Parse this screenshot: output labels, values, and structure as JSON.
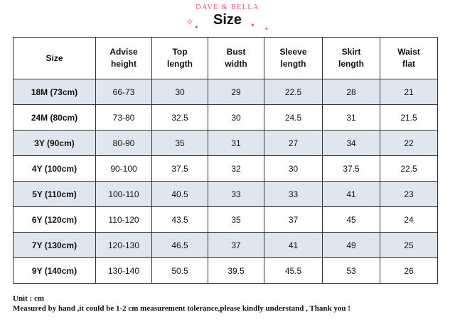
{
  "header": {
    "brand": "DAVE & BELLA",
    "title": "Size"
  },
  "table": {
    "columns": [
      {
        "line1": "Size",
        "line2": ""
      },
      {
        "line1": "Advise",
        "line2": "height"
      },
      {
        "line1": "Top",
        "line2": "length"
      },
      {
        "line1": "Bust",
        "line2": "width"
      },
      {
        "line1": "Sleeve",
        "line2": "length"
      },
      {
        "line1": "Skirt",
        "line2": "length"
      },
      {
        "line1": "Waist",
        "line2": "flat"
      }
    ],
    "rows": [
      [
        "18M (73cm)",
        "66-73",
        "30",
        "29",
        "22.5",
        "28",
        "21"
      ],
      [
        "24M (80cm)",
        "73-80",
        "32.5",
        "30",
        "24.5",
        "31",
        "21.5"
      ],
      [
        "3Y (90cm)",
        "80-90",
        "35",
        "31",
        "27",
        "34",
        "22"
      ],
      [
        "4Y (100cm)",
        "90-100",
        "37.5",
        "32",
        "30",
        "37.5",
        "22.5"
      ],
      [
        "5Y (110cm)",
        "100-110",
        "40.5",
        "33",
        "33",
        "41",
        "23"
      ],
      [
        "6Y (120cm)",
        "110-120",
        "43.5",
        "35",
        "37",
        "45",
        "24"
      ],
      [
        "7Y (130cm)",
        "120-130",
        "46.5",
        "37",
        "41",
        "49",
        "25"
      ],
      [
        "9Y (140cm)",
        "130-140",
        "50.5",
        "39.5",
        "45.5",
        "53",
        "26"
      ]
    ]
  },
  "footer": {
    "unit": "Unit : cm",
    "note": "Measured by hand ,it could be 1-2 cm measurement tolerance,please kindly understand , Thank you !"
  },
  "colors": {
    "brand_pink": "#e0458a",
    "shaded_row": "#dfe6ef"
  },
  "icons": [
    "sparkle-icon"
  ]
}
